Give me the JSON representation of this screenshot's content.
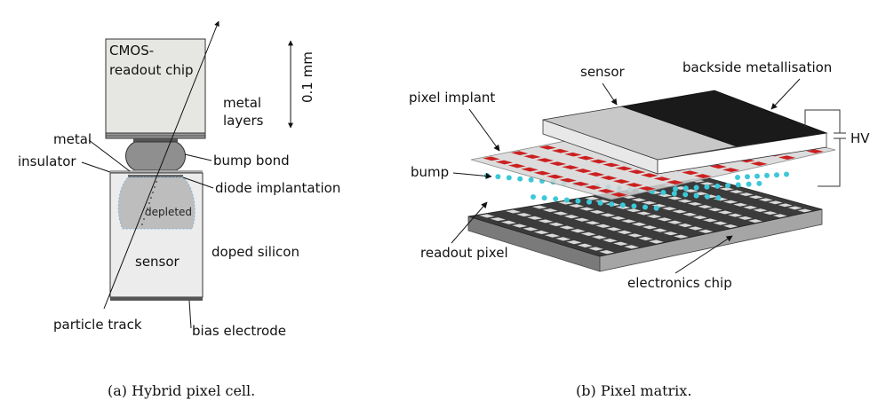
{
  "panel_a": {
    "labels": {
      "cmos_chip_line1": "CMOS-",
      "cmos_chip_line2": "readout chip",
      "scale": "0.1 mm",
      "metal_layers_line1": "metal",
      "metal_layers_line2": "layers",
      "metal": "metal",
      "insulator": "insulator",
      "bump_bond": "bump bond",
      "diode_implantation": "diode implantation",
      "depleted": "depleted",
      "doped_silicon": "doped silicon",
      "sensor": "sensor",
      "particle_track": "particle track",
      "bias_electrode": "bias electrode"
    },
    "caption": "(a) Hybrid pixel cell."
  },
  "panel_b": {
    "labels": {
      "sensor": "sensor",
      "backside_metallisation": "backside metallisation",
      "pixel_implant": "pixel implant",
      "hv": "HV",
      "bump": "bump",
      "readout_pixel": "readout pixel",
      "electronics_chip": "electronics chip"
    },
    "caption": "(b) Pixel matrix.",
    "colors": {
      "implant": "#cc2020",
      "bump": "#3cc8d8",
      "chip_top": "#3b3b3b",
      "chip_pad": "#d9d9d9",
      "metallisation": "#1a1a1a",
      "sensor_top": "#c8c8c8"
    }
  }
}
